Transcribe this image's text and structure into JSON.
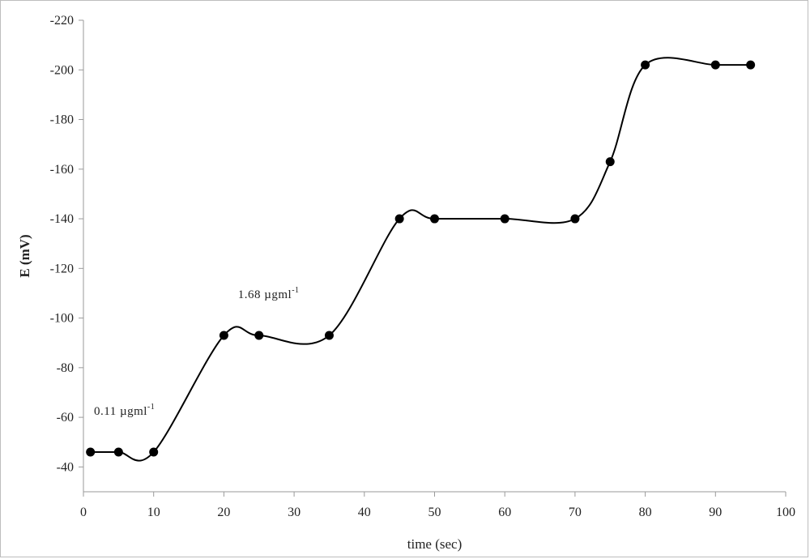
{
  "chart_data": {
    "type": "line",
    "title": "",
    "xlabel": "time (sec)",
    "ylabel": "E (mV)",
    "xlim": [
      0,
      100
    ],
    "ylim": [
      -30,
      -220
    ],
    "x_ticks": [
      0,
      10,
      20,
      30,
      40,
      50,
      60,
      70,
      80,
      90,
      100
    ],
    "y_ticks": [
      -40,
      -60,
      -80,
      -100,
      -120,
      -140,
      -160,
      -180,
      -200,
      -220
    ],
    "grid": false,
    "legend": "none",
    "line_color": "#000000",
    "marker_color": "#000000",
    "smooth": true,
    "series": [
      {
        "x": [
          1,
          5,
          10,
          20,
          25,
          35,
          45,
          50,
          60,
          70,
          75,
          80,
          90,
          95
        ],
        "y": [
          -46,
          -46,
          -46,
          -93,
          -93,
          -93,
          -140,
          -140,
          -140,
          -140,
          -163,
          -202,
          -202,
          -202
        ]
      }
    ],
    "annotations": [
      {
        "text": "0.11 µgml",
        "sup": "-1",
        "x": 1.5,
        "y": -61
      },
      {
        "text": "1.68 µgml",
        "sup": "-1",
        "x": 22,
        "y": -108
      }
    ]
  }
}
